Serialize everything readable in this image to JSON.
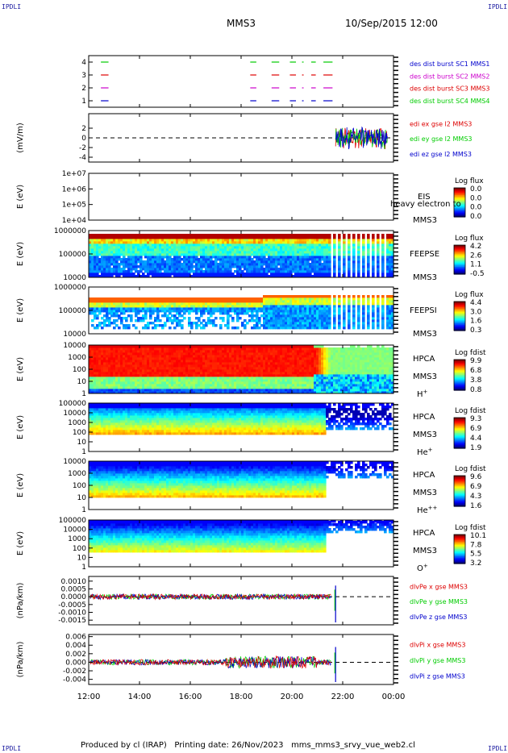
{
  "corner_label": "IPDLI",
  "header": {
    "spacecraft": "MMS3",
    "datetime": "10/Sep/2015 12:00"
  },
  "footer": {
    "produced": "Produced by cl (IRAP)",
    "printed": "Printing date: 26/Nov/2023",
    "file": "mms_mms3_srvy_vue_web2.cl"
  },
  "x_ticks": [
    "12:00",
    "14:00",
    "16:00",
    "18:00",
    "20:00",
    "22:00",
    "00:00"
  ],
  "colors": {
    "red": "#dd0000",
    "green": "#00cc00",
    "blue": "#0000cc",
    "magenta": "#cc00cc"
  },
  "chart_data": [
    {
      "type": "line",
      "id": "burst",
      "ylim": [
        0.5,
        4.5
      ],
      "y_ticks": [
        "1",
        "2",
        "3",
        "4"
      ],
      "legend": [
        {
          "label": "des dist burst SC1 MMS1",
          "color": "#0000cc"
        },
        {
          "label": "des dist burst SC2 MMS2",
          "color": "#cc00cc"
        },
        {
          "label": "des dist burst SC3 MMS3",
          "color": "#dd0000"
        },
        {
          "label": "des dist burst SC4 MMS4",
          "color": "#00cc00"
        }
      ]
    },
    {
      "type": "line",
      "id": "edi",
      "ylabel": "(mV/m)",
      "ylim": [
        -5,
        5
      ],
      "y_ticks": [
        "-4",
        "-2",
        "0",
        "2"
      ],
      "legend": [
        {
          "label": "edi ex gse l2 MMS3",
          "color": "#dd0000"
        },
        {
          "label": "edi ey gse l2 MMS3",
          "color": "#00cc00"
        },
        {
          "label": "edi ez gse l2 MMS3",
          "color": "#0000cc"
        }
      ]
    },
    {
      "type": "heatmap",
      "id": "eis",
      "ylabel": "E (eV)",
      "y_ticks": [
        "1e+04",
        "1e+05",
        "1e+06",
        "1e+07"
      ],
      "instrument": "EIS",
      "overlay": "heavy electron to",
      "sc": "MMS3",
      "cbar_title": "Log flux",
      "cbar_ticks": [
        "0.0",
        "0.0",
        "0.0",
        "0.0"
      ]
    },
    {
      "type": "heatmap",
      "id": "feepse",
      "ylabel": "E (eV)",
      "y_ticks": [
        "10000",
        "100000",
        "1000000"
      ],
      "instrument": "FEEPSE",
      "sc": "MMS3",
      "cbar_title": "Log flux",
      "cbar_ticks": [
        "4.2",
        "2.6",
        "1.1",
        "-0.5"
      ]
    },
    {
      "type": "heatmap",
      "id": "feepsi",
      "ylabel": "E (eV)",
      "y_ticks": [
        "10000",
        "100000",
        "1000000"
      ],
      "instrument": "FEEPSI",
      "sc": "MMS3",
      "cbar_title": "Log flux",
      "cbar_ticks": [
        "4.4",
        "3.0",
        "1.6",
        "0.3"
      ]
    },
    {
      "type": "heatmap",
      "id": "hpca_h",
      "ylabel": "E (eV)",
      "y_ticks": [
        "1",
        "10",
        "100",
        "1000",
        "10000"
      ],
      "instrument": "HPCA",
      "sc": "MMS3",
      "species": "H",
      "charge": "+",
      "cbar_title": "Log fdist",
      "cbar_ticks": [
        "9.9",
        "6.8",
        "3.8",
        "0.8"
      ]
    },
    {
      "type": "heatmap",
      "id": "hpca_he",
      "ylabel": "E (eV)",
      "y_ticks": [
        "1",
        "10",
        "100",
        "1000",
        "10000",
        "100000"
      ],
      "instrument": "HPCA",
      "sc": "MMS3",
      "species": "He",
      "charge": "+",
      "cbar_title": "Log fdist",
      "cbar_ticks": [
        "9.3",
        "6.9",
        "4.4",
        "1.9"
      ]
    },
    {
      "type": "heatmap",
      "id": "hpca_hepp",
      "ylabel": "E (eV)",
      "y_ticks": [
        "1",
        "10",
        "100",
        "1000",
        "10000"
      ],
      "instrument": "HPCA",
      "sc": "MMS3",
      "species": "He",
      "charge": "++",
      "cbar_title": "Log fdist",
      "cbar_ticks": [
        "9.6",
        "6.9",
        "4.3",
        "1.6"
      ]
    },
    {
      "type": "heatmap",
      "id": "hpca_o",
      "ylabel": "E (eV)",
      "y_ticks": [
        "1",
        "10",
        "100",
        "1000",
        "10000",
        "100000"
      ],
      "instrument": "HPCA",
      "sc": "MMS3",
      "species": "O",
      "charge": "+",
      "cbar_title": "Log fdist",
      "cbar_ticks": [
        "10.1",
        "7.8",
        "5.5",
        "3.2"
      ]
    },
    {
      "type": "line",
      "id": "dpe",
      "ylabel": "(nPa/km)",
      "ylim": [
        -0.0018,
        0.0013
      ],
      "y_ticks": [
        "-0.0015",
        "-0.0010",
        "-0.0005",
        "0.0000",
        "0.0005",
        "0.0010"
      ],
      "legend": [
        {
          "label": "dlvPe x gse MMS3",
          "color": "#dd0000"
        },
        {
          "label": "dlvPe y gse MMS3",
          "color": "#00cc00"
        },
        {
          "label": "dlvPe z gse MMS3",
          "color": "#0000cc"
        }
      ]
    },
    {
      "type": "line",
      "id": "dpi",
      "ylabel": "(nPa/km)",
      "ylim": [
        -0.0052,
        0.0065
      ],
      "y_ticks": [
        "-0.004",
        "-0.002",
        "0.000",
        "0.002",
        "0.004",
        "0.006"
      ],
      "legend": [
        {
          "label": "dlvPi x gse MMS3",
          "color": "#dd0000"
        },
        {
          "label": "dlvPi y gse MMS3",
          "color": "#00cc00"
        },
        {
          "label": "dlvPi z gse MMS3",
          "color": "#0000cc"
        }
      ]
    }
  ]
}
